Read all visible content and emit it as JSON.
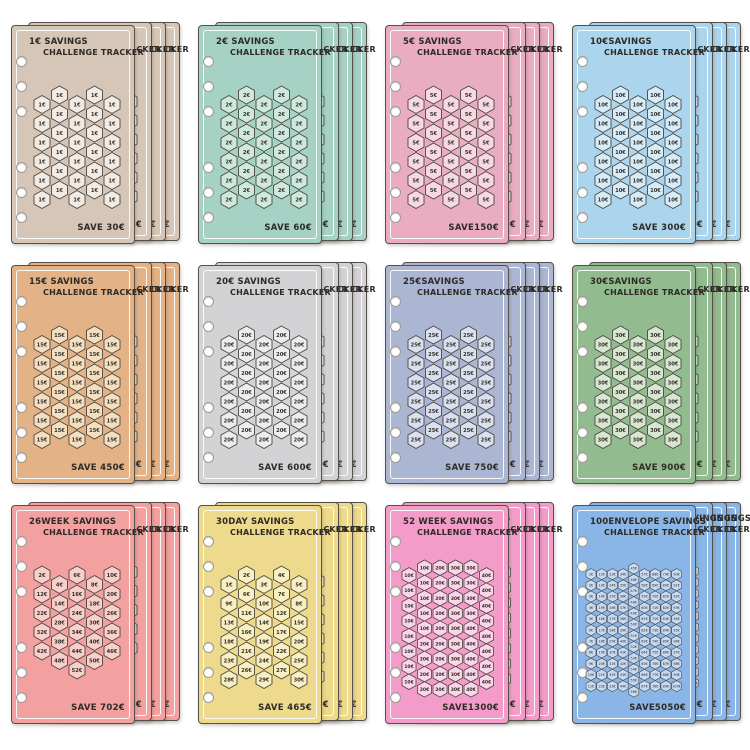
{
  "stack": {
    "sheet_count": 4
  },
  "cards": [
    {
      "title_line1": "1€ SAVINGS",
      "title_line2": "CHALLENGE TRACKER",
      "save_label": "SAVE 30€",
      "page_color": "#d6c6b7",
      "hex_color": "#f2ebe3",
      "layout": "std30",
      "hex_labels": [
        "1€",
        "1€",
        "1€",
        "1€",
        "1€",
        "1€",
        "1€",
        "1€",
        "1€",
        "1€",
        "1€",
        "1€",
        "1€",
        "1€",
        "1€",
        "1€",
        "1€",
        "1€",
        "1€",
        "1€",
        "1€",
        "1€",
        "1€",
        "1€",
        "1€",
        "1€",
        "1€",
        "1€",
        "1€",
        "1€"
      ]
    },
    {
      "title_line1": "2€ SAVINGS",
      "title_line2": "CHALLENGE TRACKER",
      "save_label": "SAVE 60€",
      "page_color": "#a5d2c4",
      "hex_color": "#d0e9df",
      "layout": "std30",
      "hex_labels": [
        "2€",
        "2€",
        "2€",
        "2€",
        "2€",
        "2€",
        "2€",
        "2€",
        "2€",
        "2€",
        "2€",
        "2€",
        "2€",
        "2€",
        "2€",
        "2€",
        "2€",
        "2€",
        "2€",
        "2€",
        "2€",
        "2€",
        "2€",
        "2€",
        "2€",
        "2€",
        "2€",
        "2€",
        "2€",
        "2€"
      ]
    },
    {
      "title_line1": "5€ SAVINGS",
      "title_line2": "CHALLENGE TRACKER",
      "save_label": "SAVE150€",
      "page_color": "#e9acc0",
      "hex_color": "#f7d9e4",
      "layout": "std30",
      "hex_labels": [
        "5€",
        "5€",
        "5€",
        "5€",
        "5€",
        "5€",
        "5€",
        "5€",
        "5€",
        "5€",
        "5€",
        "5€",
        "5€",
        "5€",
        "5€",
        "5€",
        "5€",
        "5€",
        "5€",
        "5€",
        "5€",
        "5€",
        "5€",
        "5€",
        "5€",
        "5€",
        "5€",
        "5€",
        "5€",
        "5€"
      ]
    },
    {
      "title_line1": "10€SAVINGS",
      "title_line2": "CHALLENGE TRACKER",
      "save_label": "SAVE 300€",
      "page_color": "#abd5ed",
      "hex_color": "#d6ecf8",
      "layout": "std30",
      "hex_labels": [
        "10€",
        "10€",
        "10€",
        "10€",
        "10€",
        "10€",
        "10€",
        "10€",
        "10€",
        "10€",
        "10€",
        "10€",
        "10€",
        "10€",
        "10€",
        "10€",
        "10€",
        "10€",
        "10€",
        "10€",
        "10€",
        "10€",
        "10€",
        "10€",
        "10€",
        "10€",
        "10€",
        "10€",
        "10€",
        "10€"
      ]
    },
    {
      "title_line1": "15€ SAVINGS",
      "title_line2": "CHALLENGE TRACKER",
      "save_label": "SAVE 450€",
      "page_color": "#e3b286",
      "hex_color": "#f4dfc1",
      "layout": "std30",
      "hex_labels": [
        "15€",
        "15€",
        "15€",
        "15€",
        "15€",
        "15€",
        "15€",
        "15€",
        "15€",
        "15€",
        "15€",
        "15€",
        "15€",
        "15€",
        "15€",
        "15€",
        "15€",
        "15€",
        "15€",
        "15€",
        "15€",
        "15€",
        "15€",
        "15€",
        "15€",
        "15€",
        "15€",
        "15€",
        "15€",
        "15€"
      ]
    },
    {
      "title_line1": "20€ SAVINGS",
      "title_line2": "CHALLENGE TRACKER",
      "save_label": "SAVE 600€",
      "page_color": "#d3d3d5",
      "hex_color": "#ededef",
      "layout": "std30",
      "hex_labels": [
        "20€",
        "20€",
        "20€",
        "20€",
        "20€",
        "20€",
        "20€",
        "20€",
        "20€",
        "20€",
        "20€",
        "20€",
        "20€",
        "20€",
        "20€",
        "20€",
        "20€",
        "20€",
        "20€",
        "20€",
        "20€",
        "20€",
        "20€",
        "20€",
        "20€",
        "20€",
        "20€",
        "20€",
        "20€",
        "20€"
      ]
    },
    {
      "title_line1": "25€SAVINGS",
      "title_line2": "CHALLENGE TRACKER",
      "save_label": "SAVE 750€",
      "page_color": "#abb6d3",
      "hex_color": "#dae0ef",
      "layout": "std30",
      "hex_labels": [
        "25€",
        "25€",
        "25€",
        "25€",
        "25€",
        "25€",
        "25€",
        "25€",
        "25€",
        "25€",
        "25€",
        "25€",
        "25€",
        "25€",
        "25€",
        "25€",
        "25€",
        "25€",
        "25€",
        "25€",
        "25€",
        "25€",
        "25€",
        "25€",
        "25€",
        "25€",
        "25€",
        "25€",
        "25€",
        "25€"
      ]
    },
    {
      "title_line1": "30€SAVINGS",
      "title_line2": "CHALLENGE TRACKER",
      "save_label": "SAVE 900€",
      "page_color": "#92bb90",
      "hex_color": "#d8e7d2",
      "layout": "std30",
      "hex_labels": [
        "30€",
        "30€",
        "30€",
        "30€",
        "30€",
        "30€",
        "30€",
        "30€",
        "30€",
        "30€",
        "30€",
        "30€",
        "30€",
        "30€",
        "30€",
        "30€",
        "30€",
        "30€",
        "30€",
        "30€",
        "30€",
        "30€",
        "30€",
        "30€",
        "30€",
        "30€",
        "30€",
        "30€",
        "30€",
        "30€"
      ]
    },
    {
      "title_line1": "26WEEK SAVINGS",
      "title_line2": "CHALLENGE TRACKER",
      "save_label": "SAVE 702€",
      "page_color": "#f2a1a0",
      "hex_color": "#f9cfcb",
      "layout": "tri26",
      "hex_labels": [
        "2€",
        "6€",
        "10€",
        "4€",
        "8€",
        "12€",
        "16€",
        "20€",
        "14€",
        "18€",
        "22€",
        "24€",
        "26€",
        "28€",
        "30€",
        "32€",
        "34€",
        "36€",
        "38€",
        "40€",
        "42€",
        "44€",
        "46€",
        "48€",
        "50€",
        "52€"
      ]
    },
    {
      "title_line1": "30DAY SAVINGS",
      "title_line2": "CHALLENGE TRACKER",
      "save_label": "SAVE 465€",
      "page_color": "#edda8c",
      "hex_color": "#f8efc2",
      "layout": "std30",
      "hex_labels": [
        "2€",
        "4€",
        "1€",
        "3€",
        "5€",
        "6€",
        "7€",
        "9€",
        "10€",
        "8€",
        "11€",
        "12€",
        "13€",
        "14€",
        "15€",
        "16€",
        "17€",
        "18€",
        "19€",
        "20€",
        "21€",
        "22€",
        "23€",
        "24€",
        "25€",
        "26€",
        "27€",
        "28€",
        "29€",
        "30€"
      ]
    },
    {
      "title_line1": "52 WEEK SAVINGS",
      "title_line2": "CHALLENGE TRACKER",
      "save_label": "SAVE1300€",
      "page_color": "#f39cca",
      "hex_color": "#fbd5e9",
      "layout": "col52",
      "hex_labels": [
        "10€",
        "10€",
        "10€",
        "10€",
        "10€",
        "10€",
        "10€",
        "10€",
        "10€",
        "10€",
        "10€",
        "10€",
        "10€",
        "20€",
        "20€",
        "20€",
        "20€",
        "20€",
        "20€",
        "20€",
        "20€",
        "20€",
        "20€",
        "20€",
        "20€",
        "20€",
        "30€",
        "30€",
        "30€",
        "30€",
        "30€",
        "30€",
        "30€",
        "30€",
        "30€",
        "30€",
        "30€",
        "30€",
        "30€",
        "40€",
        "40€",
        "40€",
        "40€",
        "40€",
        "40€",
        "40€",
        "40€",
        "40€",
        "40€",
        "40€",
        "40€",
        "40€"
      ]
    },
    {
      "title_line1": "100ENVELOPE SAVINGS",
      "title_line2": "CHALLENGE TRACKER",
      "save_label": "SAVE5050€",
      "page_color": "#8ab5e7",
      "hex_color": "#c6daf4",
      "layout": "col100",
      "hex_labels": [
        "1€",
        "2€",
        "3€",
        "4€",
        "5€",
        "6€",
        "7€",
        "8€",
        "9€",
        "10€",
        "11€",
        "12€",
        "13€",
        "14€",
        "15€",
        "16€",
        "17€",
        "18€",
        "19€",
        "20€",
        "21€",
        "22€",
        "23€",
        "24€",
        "25€",
        "26€",
        "27€",
        "28€",
        "29€",
        "30€",
        "31€",
        "32€",
        "33€",
        "34€",
        "35€",
        "36€",
        "37€",
        "38€",
        "39€",
        "40€",
        "41€",
        "42€",
        "43€",
        "44€",
        "45€",
        "46€",
        "47€",
        "48€",
        "49€",
        "50€",
        "51€",
        "52€",
        "53€",
        "54€",
        "55€",
        "56€",
        "57€",
        "58€",
        "59€",
        "60€",
        "61€",
        "62€",
        "63€",
        "64€",
        "65€",
        "66€",
        "67€",
        "68€",
        "69€",
        "70€",
        "71€",
        "72€",
        "73€",
        "74€",
        "75€",
        "76€",
        "77€",
        "78€",
        "79€",
        "80€",
        "81€",
        "82€",
        "83€",
        "84€",
        "85€",
        "86€",
        "87€",
        "88€",
        "89€",
        "90€",
        "91€",
        "92€",
        "93€",
        "94€",
        "95€",
        "96€",
        "97€",
        "98€",
        "99€",
        "100€"
      ]
    }
  ]
}
